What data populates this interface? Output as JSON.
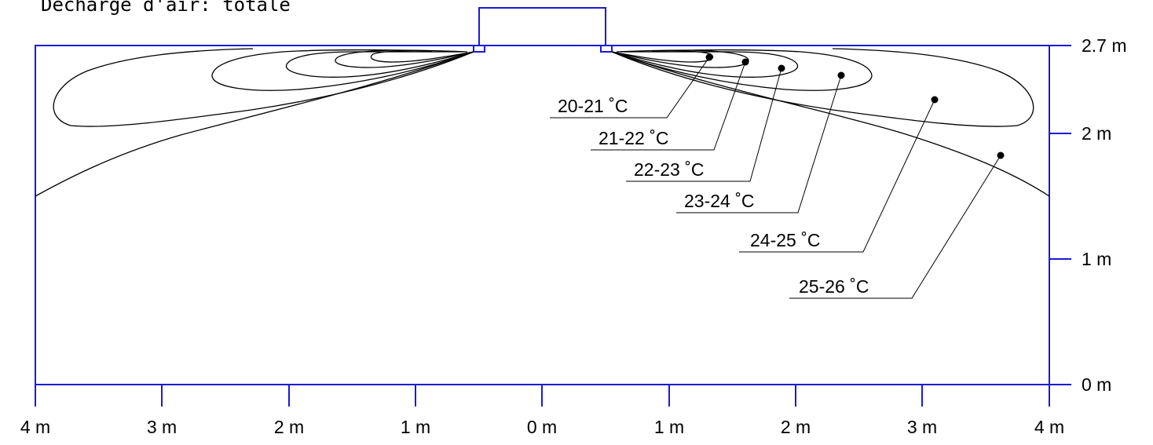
{
  "title": "Décharge d'air: totale",
  "x_ticks": [
    "4 m",
    "3 m",
    "2 m",
    "1 m",
    "0 m",
    "1 m",
    "2 m",
    "3 m",
    "4 m"
  ],
  "y_ticks": [
    "0 m",
    "1 m",
    "2 m",
    "2.7 m"
  ],
  "colors": {
    "axis": "#1a1adb",
    "contour": "#000000"
  },
  "labels": [
    "20-21 ˚C",
    "21-22 ˚C",
    "22-23 ˚C",
    "23-24 ˚C",
    "24-25 ˚C",
    "25-26 ˚C"
  ]
}
